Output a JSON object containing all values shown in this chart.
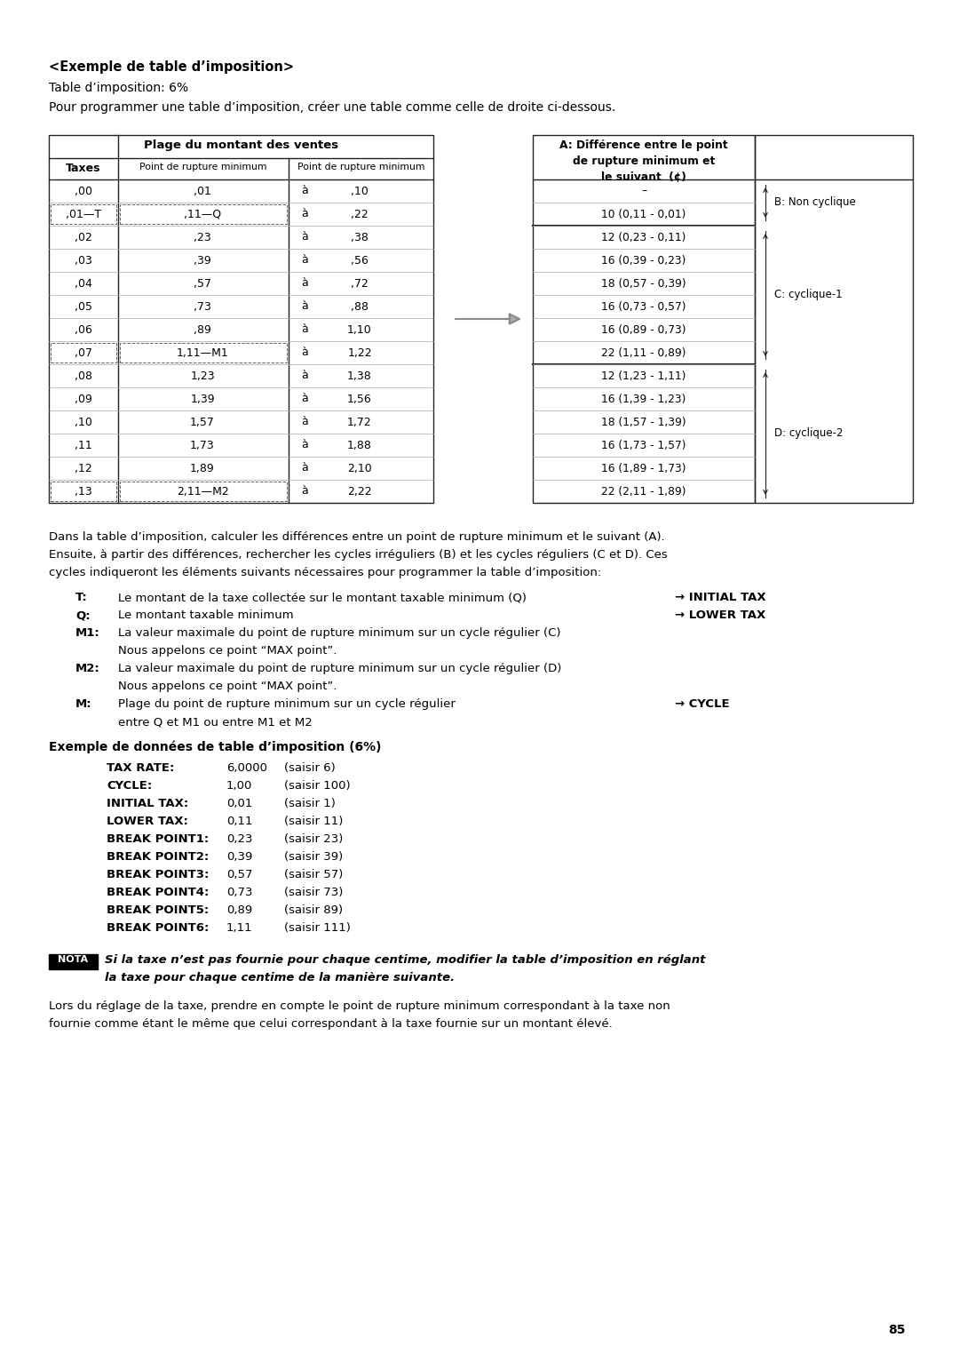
{
  "title": "<Exemple de table d’imposition>",
  "subtitle1": "Table d’imposition: 6%",
  "subtitle2": "Pour programmer une table d’imposition, créer une table comme celle de droite ci-dessous.",
  "left_table_header1": "Plage du montant des ventes",
  "left_table_col1": "Taxes",
  "left_table_col2": "Point de rupture minimum",
  "left_table_col3": "Point de rupture minimum",
  "left_table_rows": [
    [
      ",00",
      ",01",
      "à",
      ",10"
    ],
    [
      ",01—T",
      ",11—Q",
      "à",
      ",22"
    ],
    [
      ",02",
      ",23",
      "à",
      ",38"
    ],
    [
      ",03",
      ",39",
      "à",
      ",56"
    ],
    [
      ",04",
      ",57",
      "à",
      ",72"
    ],
    [
      ",05",
      ",73",
      "à",
      ",88"
    ],
    [
      ",06",
      ",89",
      "à",
      "1,10"
    ],
    [
      ",07",
      "1,11—M1",
      "à",
      "1,22"
    ],
    [
      ",08",
      "1,23",
      "à",
      "1,38"
    ],
    [
      ",09",
      "1,39",
      "à",
      "1,56"
    ],
    [
      ",10",
      "1,57",
      "à",
      "1,72"
    ],
    [
      ",11",
      "1,73",
      "à",
      "1,88"
    ],
    [
      ",12",
      "1,89",
      "à",
      "2,10"
    ],
    [
      ",13",
      "2,11—M2",
      "à",
      "2,22"
    ]
  ],
  "right_table_header": "A: Différence entre le point\nde rupture minimum et\nle suivant  (¢)",
  "right_table_rows": [
    "–",
    "10 (0,11 - 0,01)",
    "12 (0,23 - 0,11)",
    "16 (0,39 - 0,23)",
    "18 (0,57 - 0,39)",
    "16 (0,73 - 0,57)",
    "16 (0,89 - 0,73)",
    "22 (1,11 - 0,89)",
    "12 (1,23 - 1,11)",
    "16 (1,39 - 1,23)",
    "18 (1,57 - 1,39)",
    "16 (1,73 - 1,57)",
    "16 (1,89 - 1,73)",
    "22 (2,11 - 1,89)"
  ],
  "cycle_labels": [
    "B: Non cyclique",
    "C: cyclique-1",
    "D: cyclique-2"
  ],
  "para1": "Dans la table d’imposition, calculer les différences entre un point de rupture minimum et le suivant (A).",
  "para2": "Ensuite, à partir des différences, rechercher les cycles irréguliers (B) et les cycles réguliers (C et D). Ces",
  "para3": "cycles indiqueront les éléments suivants nécessaires pour programmer la table d’imposition:",
  "bullet_items": [
    {
      "label": "T:",
      "text": "Le montant de la taxe collectée sur le montant taxable minimum (Q)",
      "arrow": "→ INITIAL TAX"
    },
    {
      "label": "Q:",
      "text": "Le montant taxable minimum",
      "arrow": "→ LOWER TAX"
    },
    {
      "label": "M1:",
      "text1": "La valeur maximale du point de rupture minimum sur un cycle régulier (C)",
      "text2": "Nous appelons ce point “MAX point”.",
      "arrow": ""
    },
    {
      "label": "M2:",
      "text1": "La valeur maximale du point de rupture minimum sur un cycle régulier (D)",
      "text2": "Nous appelons ce point “MAX point”.",
      "arrow": ""
    },
    {
      "label": "M:",
      "text1": "Plage du point de rupture minimum sur un cycle régulier",
      "text2": "entre Q et M1 ou entre M1 et M2",
      "arrow": "→ CYCLE"
    }
  ],
  "example_title": "Exemple de données de table d’imposition (6%)",
  "example_items": [
    {
      "label": "TAX RATE:",
      "value": "6,0000",
      "note": "(saisir 6)"
    },
    {
      "label": "CYCLE:",
      "value": "1,00",
      "note": "(saisir 100)"
    },
    {
      "label": "INITIAL TAX:",
      "value": "0,01",
      "note": "(saisir 1)"
    },
    {
      "label": "LOWER TAX:",
      "value": "0,11",
      "note": "(saisir 11)"
    },
    {
      "label": "BREAK POINT1:",
      "value": "0,23",
      "note": "(saisir 23)"
    },
    {
      "label": "BREAK POINT2:",
      "value": "0,39",
      "note": "(saisir 39)"
    },
    {
      "label": "BREAK POINT3:",
      "value": "0,57",
      "note": "(saisir 57)"
    },
    {
      "label": "BREAK POINT4:",
      "value": "0,73",
      "note": "(saisir 73)"
    },
    {
      "label": "BREAK POINT5:",
      "value": "0,89",
      "note": "(saisir 89)"
    },
    {
      "label": "BREAK POINT6:",
      "value": "1,11",
      "note": "(saisir 111)"
    }
  ],
  "nota_label": "NOTA",
  "nota_text1": "Si la taxe n’est pas fournie pour chaque centime, modifier la table d’imposition en réglant",
  "nota_text2": "la taxe pour chaque centime de la manière suivante.",
  "final_text1": "Lors du réglage de la taxe, prendre en compte le point de rupture minimum correspondant à la taxe non",
  "final_text2": "fournie comme étant le même que celui correspondant à la taxe fournie sur un montant élevé.",
  "page_number": "85",
  "bg_color": "#ffffff"
}
